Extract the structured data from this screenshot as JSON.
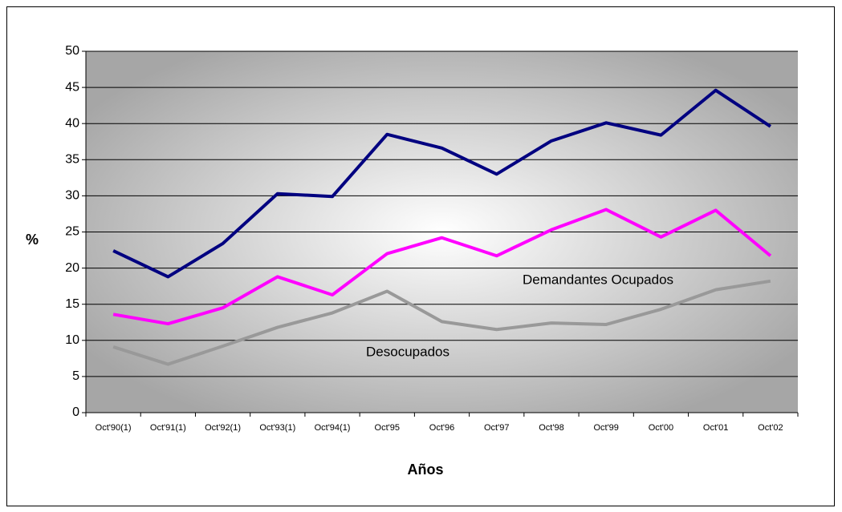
{
  "chart_data": {
    "type": "line",
    "categories": [
      "Oct'90(1)",
      "Oct'91(1)",
      "Oct'92(1)",
      "Oct'93(1)",
      "Oct'94(1)",
      "Oct'95",
      "Oct'96",
      "Oct'97",
      "Oct'98",
      "Oct'99",
      "Oct'00",
      "Oct'01",
      "Oct'02"
    ],
    "series": [
      {
        "color": "#000080",
        "values": [
          22.4,
          18.8,
          23.4,
          30.3,
          29.9,
          38.5,
          36.6,
          33.0,
          37.6,
          40.1,
          38.4,
          44.6,
          39.6
        ]
      },
      {
        "color": "#ff00ff",
        "values": [
          13.6,
          12.3,
          14.5,
          18.8,
          16.3,
          22.0,
          24.2,
          21.7,
          25.3,
          28.1,
          24.3,
          28.0,
          21.7
        ]
      },
      {
        "color": "#999999",
        "values": [
          9.1,
          6.7,
          9.2,
          11.8,
          13.8,
          16.8,
          12.6,
          11.5,
          12.4,
          12.2,
          14.3,
          17.0,
          18.2
        ]
      }
    ],
    "ylim": [
      0,
      50
    ],
    "yticks": [
      0,
      5,
      10,
      15,
      20,
      25,
      30,
      35,
      40,
      45,
      50
    ],
    "grid": true,
    "ylabel": "%",
    "xlabel": "Años",
    "annotations": [
      "Demandantes Ocupados",
      "Desocupados"
    ]
  }
}
